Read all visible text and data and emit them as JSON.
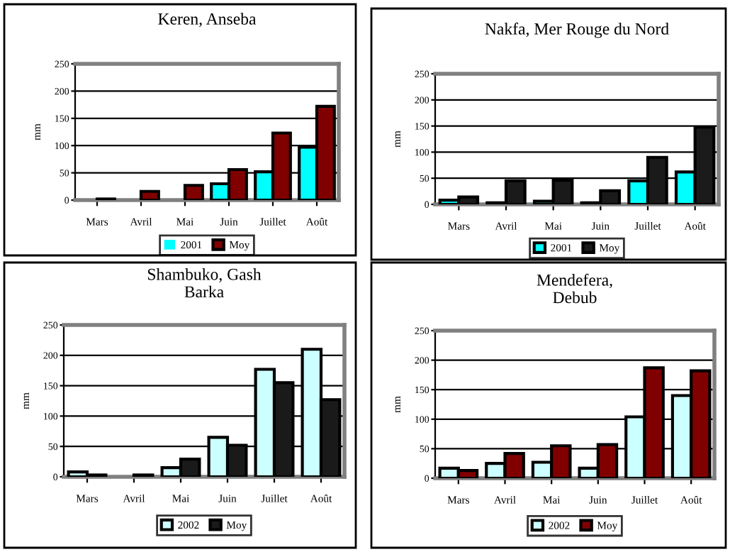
{
  "chart_data": [
    {
      "type": "bar",
      "title": "Keren, Anseba",
      "ylabel": "mm",
      "categories": [
        "Mars",
        "Avril",
        "Mai",
        "Juin",
        "Juillet",
        "Août"
      ],
      "ylim": [
        0,
        250
      ],
      "yticks": [
        0,
        50,
        100,
        150,
        200,
        250
      ],
      "grid": "y",
      "legend": "bottom",
      "series": [
        {
          "name": "2001",
          "color": "#00ffff",
          "values": [
            0,
            0,
            0,
            30,
            52,
            97
          ]
        },
        {
          "name": "Moy",
          "color": "#800000",
          "values": [
            2,
            16,
            27,
            56,
            123,
            172
          ]
        }
      ]
    },
    {
      "type": "bar",
      "title": "Nakfa, Mer Rouge du Nord",
      "ylabel": "mm",
      "categories": [
        "Mars",
        "Avril",
        "Mai",
        "Juin",
        "Juillet",
        "Août"
      ],
      "ylim": [
        0,
        250
      ],
      "yticks": [
        0,
        50,
        100,
        150,
        200,
        250
      ],
      "grid": "y",
      "legend": "bottom",
      "series": [
        {
          "name": "2001",
          "color": "#00ffff",
          "values": [
            8,
            3,
            6,
            3,
            45,
            62
          ]
        },
        {
          "name": "Moy",
          "color": "#1a1a1a",
          "values": [
            14,
            45,
            46,
            26,
            90,
            148
          ]
        }
      ]
    },
    {
      "type": "bar",
      "title": "Shambuko, Gash\nBarka",
      "ylabel": "mm",
      "categories": [
        "Mars",
        "Avril",
        "Mai",
        "Juin",
        "Juillet",
        "Août"
      ],
      "ylim": [
        0,
        250
      ],
      "yticks": [
        0,
        50,
        100,
        150,
        200,
        250
      ],
      "grid": "y",
      "legend": "bottom",
      "series": [
        {
          "name": "2002",
          "color": "#ccffff",
          "values": [
            8,
            0,
            15,
            65,
            177,
            210
          ]
        },
        {
          "name": "Moy",
          "color": "#1a1a1a",
          "values": [
            3,
            3,
            29,
            52,
            155,
            127
          ]
        }
      ]
    },
    {
      "type": "bar",
      "title": "Mendefera,\nDebub",
      "ylabel": "mm",
      "categories": [
        "Mars",
        "Avril",
        "Mai",
        "Juin",
        "Juillet",
        "Août"
      ],
      "ylim": [
        0,
        250
      ],
      "yticks": [
        0,
        50,
        100,
        150,
        200,
        250
      ],
      "grid": "y",
      "legend": "bottom",
      "series": [
        {
          "name": "2002",
          "color": "#ccffff",
          "values": [
            17,
            25,
            27,
            17,
            104,
            140
          ]
        },
        {
          "name": "Moy",
          "color": "#800000",
          "values": [
            13,
            42,
            55,
            57,
            187,
            182
          ]
        }
      ]
    }
  ]
}
